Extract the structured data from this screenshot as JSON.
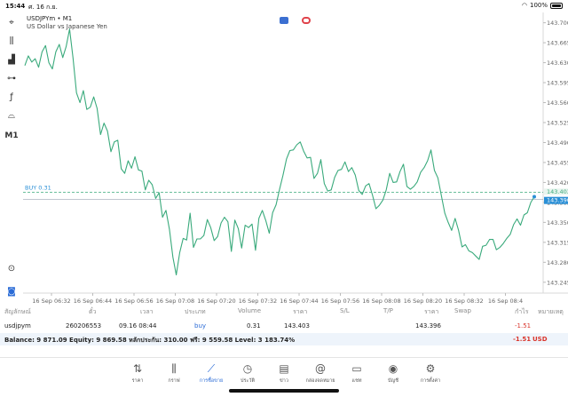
{
  "statusbar": {
    "time": "15:44",
    "date": "ศ. 16 ก.ย.",
    "battery": "100%"
  },
  "toolbar": {
    "items": [
      {
        "name": "crosshair-icon",
        "glyph": "⌖"
      },
      {
        "name": "candles-icon",
        "glyph": "⫼"
      },
      {
        "name": "indicators-icon",
        "glyph": "▟"
      },
      {
        "name": "objects-icon",
        "glyph": "⊶"
      },
      {
        "name": "function-icon",
        "glyph": "ƒ"
      },
      {
        "name": "shapes-icon",
        "glyph": "⌓"
      },
      {
        "name": "timeframe-label",
        "glyph": "M1"
      },
      {
        "name": "zoom-icon",
        "glyph": "⊙"
      },
      {
        "name": "flag-icon",
        "glyph": "◙"
      }
    ]
  },
  "chart": {
    "symbol_line": "USDJPYm • M1",
    "description": "US Dollar vs Japanese Yen",
    "buy_label": "BUY 0.31",
    "current_price": "143.390",
    "entry_tag": "143.403",
    "line_color": "#3aaa7c",
    "entry_line_color": "#3aaa7c",
    "price_tag_color": "#2a8fd6"
  },
  "chart_data": {
    "type": "line",
    "symbol": "USDJPYm",
    "timeframe": "M1",
    "y_ticks": [
      "143.700",
      "143.665",
      "143.630",
      "143.595",
      "143.560",
      "143.525",
      "143.490",
      "143.455",
      "143.420",
      "143.385",
      "143.350",
      "143.315",
      "143.280",
      "143.245"
    ],
    "ylim": [
      143.226,
      143.715
    ],
    "x_ticks": [
      "16 Sep 06:32",
      "16 Sep 06:44",
      "16 Sep 06:56",
      "16 Sep 07:08",
      "16 Sep 07:20",
      "16 Sep 07:32",
      "16 Sep 07:44",
      "16 Sep 07:56",
      "16 Sep 08:08",
      "16 Sep 08:20",
      "16 Sep 08:32",
      "16 Sep 08:4"
    ],
    "entry_price": 143.403,
    "current_price": 143.39,
    "values": [
      143.625,
      143.642,
      143.631,
      143.637,
      143.622,
      143.649,
      143.66,
      143.63,
      143.619,
      143.649,
      143.662,
      143.639,
      143.658,
      143.689,
      143.638,
      143.577,
      143.56,
      143.581,
      143.548,
      143.552,
      143.57,
      143.55,
      143.504,
      143.524,
      143.51,
      143.474,
      143.491,
      143.494,
      143.444,
      143.436,
      143.458,
      143.445,
      143.465,
      143.442,
      143.44,
      143.407,
      143.424,
      143.416,
      143.392,
      143.402,
      143.359,
      143.371,
      143.338,
      143.289,
      143.258,
      143.297,
      143.322,
      143.319,
      143.366,
      143.306,
      143.321,
      143.321,
      143.327,
      143.355,
      143.341,
      143.318,
      143.325,
      143.349,
      143.359,
      143.351,
      143.299,
      143.354,
      143.339,
      143.305,
      143.345,
      143.341,
      143.347,
      143.301,
      143.357,
      143.371,
      143.353,
      143.331,
      143.367,
      143.381,
      143.408,
      143.433,
      143.461,
      143.476,
      143.477,
      143.486,
      143.491,
      143.475,
      143.463,
      143.464,
      143.427,
      143.436,
      143.46,
      143.418,
      143.405,
      143.407,
      143.429,
      143.441,
      143.443,
      143.456,
      143.439,
      143.446,
      143.433,
      143.406,
      143.399,
      143.414,
      143.418,
      143.398,
      143.374,
      143.38,
      143.389,
      143.407,
      143.436,
      143.42,
      143.421,
      143.439,
      143.452,
      143.413,
      143.408,
      143.413,
      143.421,
      143.438,
      143.446,
      143.458,
      143.477,
      143.441,
      143.428,
      143.397,
      143.366,
      143.35,
      143.336,
      143.357,
      143.336,
      143.307,
      143.311,
      143.3,
      143.297,
      143.291,
      143.285,
      143.308,
      143.31,
      143.32,
      143.32,
      143.302,
      143.306,
      143.313,
      143.322,
      143.329,
      143.346,
      143.356,
      143.345,
      143.363,
      143.367,
      143.385,
      143.395
    ]
  },
  "table": {
    "headers": [
      "สัญลักษณ์",
      "ตั๋ว",
      "เวลา",
      "ประเภท",
      "Volume",
      "ราคา",
      "S/L",
      "T/P",
      "ราคา",
      "Swap",
      "กำไร",
      "หมายเหตุ"
    ],
    "row": {
      "symbol": "usdjpym",
      "ticket": "260206553",
      "time": "09.16 08:44",
      "type": "buy",
      "volume": "0.31",
      "open_price": "143.403",
      "current_price": "143.396",
      "profit": "-1.51"
    },
    "balance_text": "Balance: 9 871.09 Equity: 9 869.58 หลักประกัน: 310.00 ฟรี: 9 559.58 Level: 3 183.74%",
    "total_profit": "-1.51",
    "currency": "USD"
  },
  "nav": {
    "items": [
      {
        "name": "nav-quotes",
        "icon": "quotes-icon",
        "glyph": "⇅",
        "label": "ราคา"
      },
      {
        "name": "nav-chart",
        "icon": "chart-icon",
        "glyph": "⫼",
        "label": "กราฟ"
      },
      {
        "name": "nav-trade",
        "icon": "trade-icon",
        "glyph": "⟋",
        "label": "การซื้อขาย",
        "active": true
      },
      {
        "name": "nav-history",
        "icon": "history-icon",
        "glyph": "◷",
        "label": "ประวัติ"
      },
      {
        "name": "nav-news",
        "icon": "news-icon",
        "glyph": "▤",
        "label": "ข่าว"
      },
      {
        "name": "nav-mailbox",
        "icon": "mailbox-icon",
        "glyph": "@",
        "label": "กล่องจดหมาย"
      },
      {
        "name": "nav-chat",
        "icon": "chat-icon",
        "glyph": "▭",
        "label": "แชท"
      },
      {
        "name": "nav-accounts",
        "icon": "accounts-icon",
        "glyph": "◉",
        "label": "บัญชี"
      },
      {
        "name": "nav-settings",
        "icon": "settings-icon",
        "glyph": "⚙",
        "label": "การตั้งค่า"
      }
    ]
  }
}
